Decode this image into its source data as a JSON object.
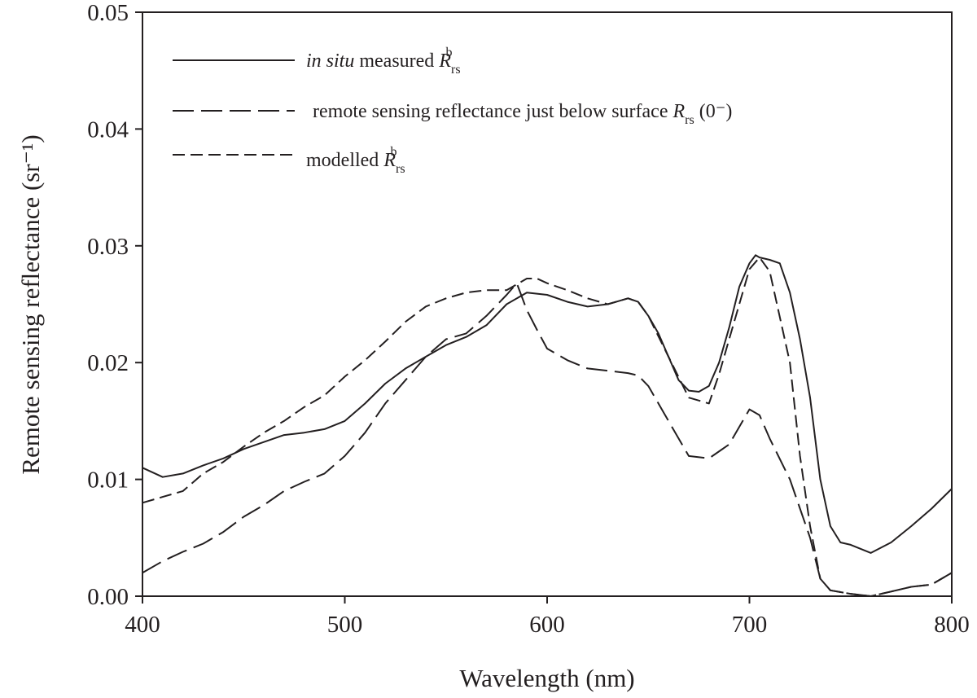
{
  "chart_data": {
    "type": "line",
    "xlabel": "Wavelength (nm)",
    "ylabel": "Remote sensing reflectance (sr⁻¹)",
    "xlim": [
      400,
      800
    ],
    "ylim": [
      0,
      0.05
    ],
    "x_ticks": [
      "400",
      "500",
      "600",
      "700",
      "800"
    ],
    "y_ticks": [
      "0.00",
      "0.01",
      "0.02",
      "0.03",
      "0.04",
      "0.05"
    ],
    "x_tick_values": [
      400,
      500,
      600,
      700,
      800
    ],
    "y_tick_values": [
      0,
      0.01,
      0.02,
      0.03,
      0.04,
      0.05
    ],
    "grid": false,
    "legend_position": "top-left",
    "legend": [
      {
        "italic_prefix": "in situ",
        "text": " measured ",
        "symbol": "R",
        "sub": "rs",
        "sup": "b",
        "suffix": ""
      },
      {
        "italic_prefix": "",
        "text": "remote sensing reflectance just below surface ",
        "symbol": "R",
        "sub": "rs",
        "sup": "",
        "suffix": " (0⁻)"
      },
      {
        "italic_prefix": "",
        "text": "modelled ",
        "symbol": "R",
        "sub": "rs",
        "sup": "b",
        "suffix": ""
      }
    ],
    "series": [
      {
        "dash": "solid",
        "x": [
          400,
          410,
          420,
          430,
          440,
          450,
          460,
          470,
          480,
          490,
          500,
          510,
          520,
          530,
          540,
          550,
          560,
          570,
          580,
          590,
          600,
          610,
          620,
          630,
          640,
          645,
          650,
          655,
          660,
          665,
          670,
          675,
          680,
          685,
          690,
          695,
          700,
          703,
          705,
          710,
          715,
          720,
          725,
          730,
          735,
          740,
          745,
          750,
          760,
          770,
          780,
          790,
          800
        ],
        "y": [
          0.011,
          0.0102,
          0.0105,
          0.0112,
          0.0118,
          0.0126,
          0.0132,
          0.0138,
          0.014,
          0.0143,
          0.015,
          0.0165,
          0.0182,
          0.0195,
          0.0205,
          0.0215,
          0.0222,
          0.0232,
          0.025,
          0.026,
          0.0258,
          0.0252,
          0.0248,
          0.025,
          0.0255,
          0.0252,
          0.024,
          0.0225,
          0.0205,
          0.0185,
          0.0176,
          0.0175,
          0.018,
          0.02,
          0.023,
          0.0265,
          0.0285,
          0.0292,
          0.029,
          0.0288,
          0.0285,
          0.026,
          0.022,
          0.017,
          0.01,
          0.006,
          0.0046,
          0.0044,
          0.0037,
          0.0046,
          0.006,
          0.0075,
          0.0092
        ]
      },
      {
        "dash": "long-dash",
        "x": [
          400,
          410,
          420,
          430,
          440,
          450,
          460,
          470,
          480,
          490,
          500,
          510,
          520,
          530,
          540,
          550,
          560,
          570,
          580,
          585,
          590,
          595,
          600,
          610,
          620,
          630,
          640,
          645,
          650,
          660,
          670,
          680,
          690,
          700,
          705,
          710,
          720,
          730,
          735,
          740,
          750,
          760,
          770,
          780,
          790,
          800
        ],
        "y": [
          0.002,
          0.003,
          0.0038,
          0.0045,
          0.0055,
          0.0068,
          0.0078,
          0.009,
          0.0098,
          0.0105,
          0.012,
          0.014,
          0.0165,
          0.0185,
          0.0205,
          0.022,
          0.0225,
          0.024,
          0.0258,
          0.0268,
          0.0245,
          0.0228,
          0.0212,
          0.0202,
          0.0195,
          0.0193,
          0.0191,
          0.0189,
          0.018,
          0.015,
          0.012,
          0.0118,
          0.013,
          0.016,
          0.0155,
          0.0135,
          0.01,
          0.005,
          0.0015,
          0.0005,
          0.0002,
          0.0,
          0.0004,
          0.0008,
          0.001,
          0.002
        ]
      },
      {
        "dash": "short-dash",
        "x": [
          400,
          410,
          420,
          430,
          440,
          450,
          460,
          470,
          480,
          490,
          500,
          510,
          520,
          530,
          540,
          550,
          560,
          570,
          580,
          590,
          595,
          600,
          610,
          620,
          630,
          640,
          645,
          650,
          660,
          670,
          680,
          685,
          690,
          700,
          705,
          710,
          720,
          725,
          730,
          735,
          740,
          750,
          760,
          770,
          780,
          790,
          800
        ],
        "y": [
          0.008,
          0.0085,
          0.009,
          0.0105,
          0.0115,
          0.0128,
          0.014,
          0.015,
          0.0162,
          0.0172,
          0.0188,
          0.0202,
          0.0218,
          0.0235,
          0.0248,
          0.0255,
          0.026,
          0.0262,
          0.0262,
          0.0272,
          0.0272,
          0.0268,
          0.0262,
          0.0255,
          0.025,
          0.0255,
          0.0252,
          0.024,
          0.0205,
          0.017,
          0.0165,
          0.019,
          0.022,
          0.028,
          0.029,
          0.0278,
          0.02,
          0.012,
          0.006,
          0.0015,
          0.0005,
          0.0002,
          0.0,
          0.0004,
          0.0008,
          0.001,
          0.002
        ]
      }
    ]
  }
}
